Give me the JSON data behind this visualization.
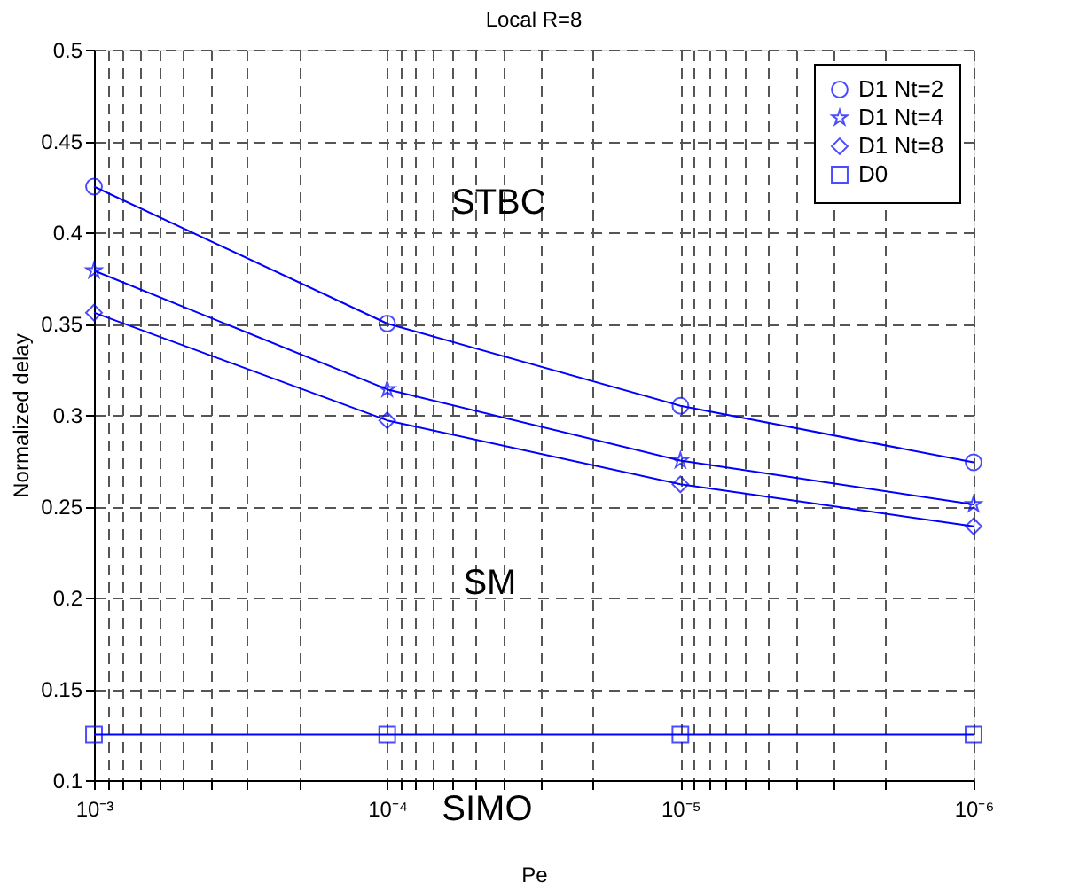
{
  "chart_data": {
    "type": "line",
    "title": "Local R=8",
    "xlabel": "Pe",
    "ylabel": "Normalized delay",
    "x": [
      0.001,
      0.0001,
      1e-05,
      1e-06
    ],
    "series": [
      {
        "name": "D1 Nt=2",
        "color": "#0000ff",
        "marker": "circle",
        "values": [
          0.425,
          0.35,
          0.305,
          0.274
        ]
      },
      {
        "name": "D1 Nt=4",
        "color": "#0000ff",
        "marker": "star",
        "values": [
          0.379,
          0.314,
          0.275,
          0.251
        ]
      },
      {
        "name": "D1 Nt=8",
        "color": "#0000ff",
        "marker": "diamond",
        "values": [
          0.356,
          0.297,
          0.262,
          0.239
        ]
      },
      {
        "name": "D0",
        "color": "#0000ff",
        "marker": "square",
        "values": [
          0.125,
          0.125,
          0.125,
          0.125
        ]
      }
    ],
    "log": "x",
    "xlim": [
      0.001,
      1e-06
    ],
    "xticks": [
      {
        "value": 0.001,
        "label": "10⁻³"
      },
      {
        "value": 0.0009,
        "label": null
      },
      {
        "value": 0.0008,
        "label": null
      },
      {
        "value": 0.0007,
        "label": null
      },
      {
        "value": 0.0006,
        "label": null
      },
      {
        "value": 0.0005,
        "label": null
      },
      {
        "value": 0.0004,
        "label": null
      },
      {
        "value": 0.0003,
        "label": null
      },
      {
        "value": 0.0002,
        "label": null
      },
      {
        "value": 0.0001,
        "label": "10⁻⁴"
      },
      {
        "value": 9e-05,
        "label": null
      },
      {
        "value": 8e-05,
        "label": null
      },
      {
        "value": 7e-05,
        "label": null
      },
      {
        "value": 6e-05,
        "label": null
      },
      {
        "value": 5e-05,
        "label": null
      },
      {
        "value": 4e-05,
        "label": null
      },
      {
        "value": 3e-05,
        "label": null
      },
      {
        "value": 2e-05,
        "label": null
      },
      {
        "value": 1e-05,
        "label": "10⁻⁵"
      },
      {
        "value": 9e-06,
        "label": null
      },
      {
        "value": 8e-06,
        "label": null
      },
      {
        "value": 7e-06,
        "label": null
      },
      {
        "value": 6e-06,
        "label": null
      },
      {
        "value": 5e-06,
        "label": null
      },
      {
        "value": 4e-06,
        "label": null
      },
      {
        "value": 3e-06,
        "label": null
      },
      {
        "value": 2e-06,
        "label": null
      },
      {
        "value": 1e-06,
        "label": "10⁻⁶"
      }
    ],
    "ylim": [
      0.1,
      0.5
    ],
    "yticks": [
      0.1,
      0.15,
      0.2,
      0.25,
      0.3,
      0.35,
      0.4,
      0.45,
      0.5
    ],
    "grid": true,
    "legend": "top right",
    "line_style": "solid",
    "annotations": [
      "STBC",
      "SM",
      "SIMO"
    ]
  }
}
